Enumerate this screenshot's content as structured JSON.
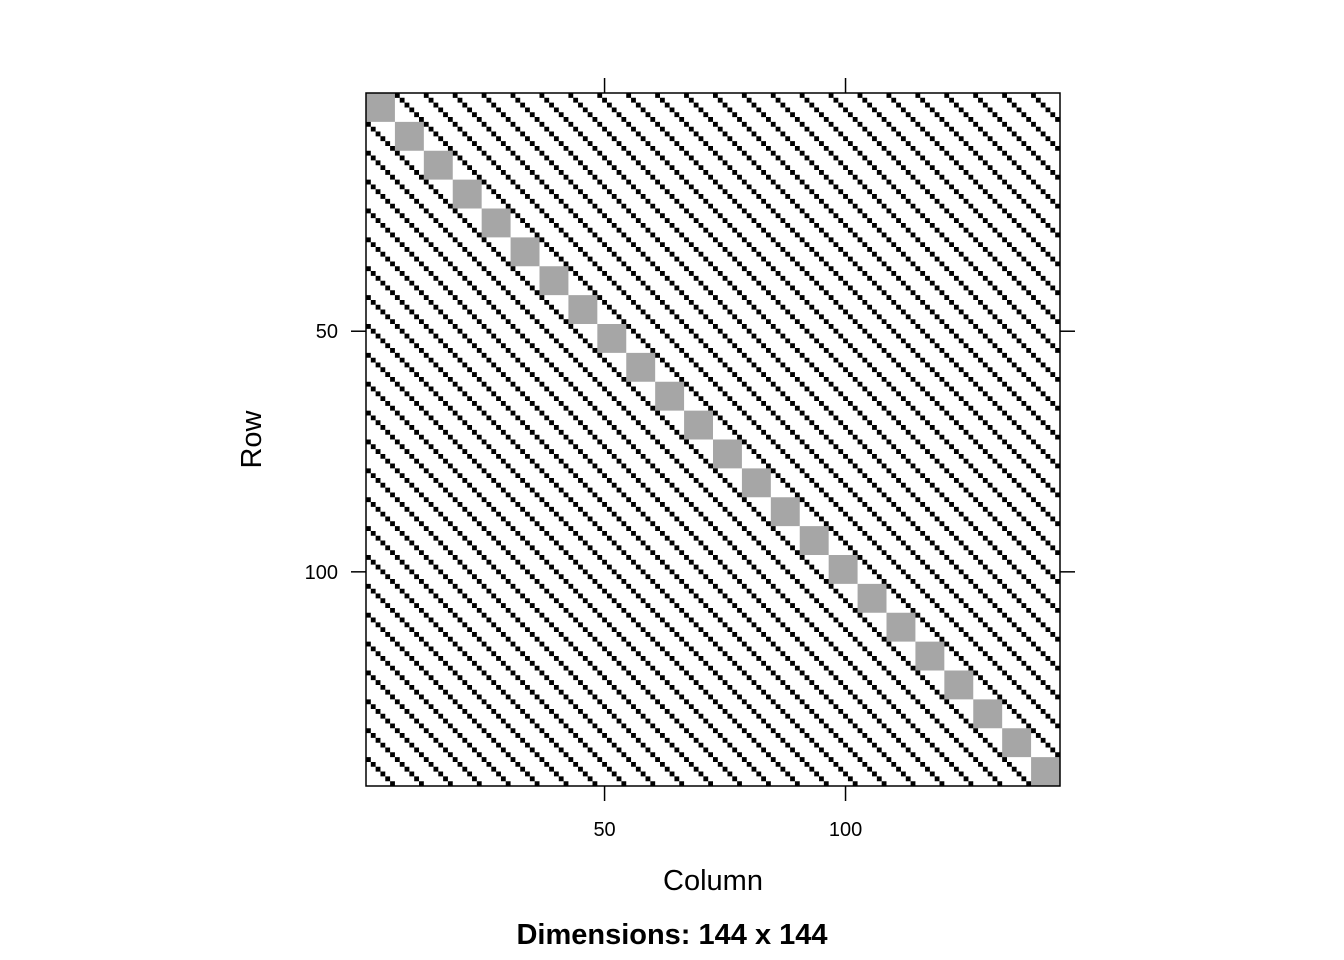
{
  "chart_data": {
    "type": "heatmap",
    "title": "",
    "xlabel": "Column",
    "ylabel": "Row",
    "caption": "Dimensions: 144 x 144",
    "nrow": 144,
    "ncol": 144,
    "xlim": [
      0.5,
      144.5
    ],
    "ylim": [
      0.5,
      144.5
    ],
    "x_ticks": [
      50,
      100
    ],
    "y_ticks": [
      50,
      100
    ],
    "x_tick_labels": [
      "50",
      "100"
    ],
    "y_tick_labels": [
      "50",
      "100"
    ],
    "y_axis_reversed": true,
    "grid": false,
    "block_size": 6,
    "num_blocks": 24,
    "diagonal_blocks": "6x6 blocks along the main diagonal, all entries nonzero",
    "band_offsets": [
      -138,
      -132,
      -126,
      -120,
      -114,
      -108,
      -102,
      -96,
      -90,
      -84,
      -78,
      -72,
      -66,
      -60,
      -54,
      -48,
      -42,
      -36,
      -30,
      -24,
      -18,
      -12,
      -6,
      6,
      12,
      18,
      24,
      30,
      36,
      42,
      48,
      54,
      60,
      66,
      72,
      78,
      84,
      90,
      96,
      102,
      108,
      114,
      120,
      126,
      132,
      138
    ],
    "band_description": "nonzero entries where column - row is a nonzero multiple of 6",
    "series": [
      {
        "name": "",
        "color": "#000000",
        "pattern": "off-diagonal bands"
      },
      {
        "name": "",
        "color": "#a6a6a6",
        "pattern": "diagonal blocks"
      }
    ]
  }
}
